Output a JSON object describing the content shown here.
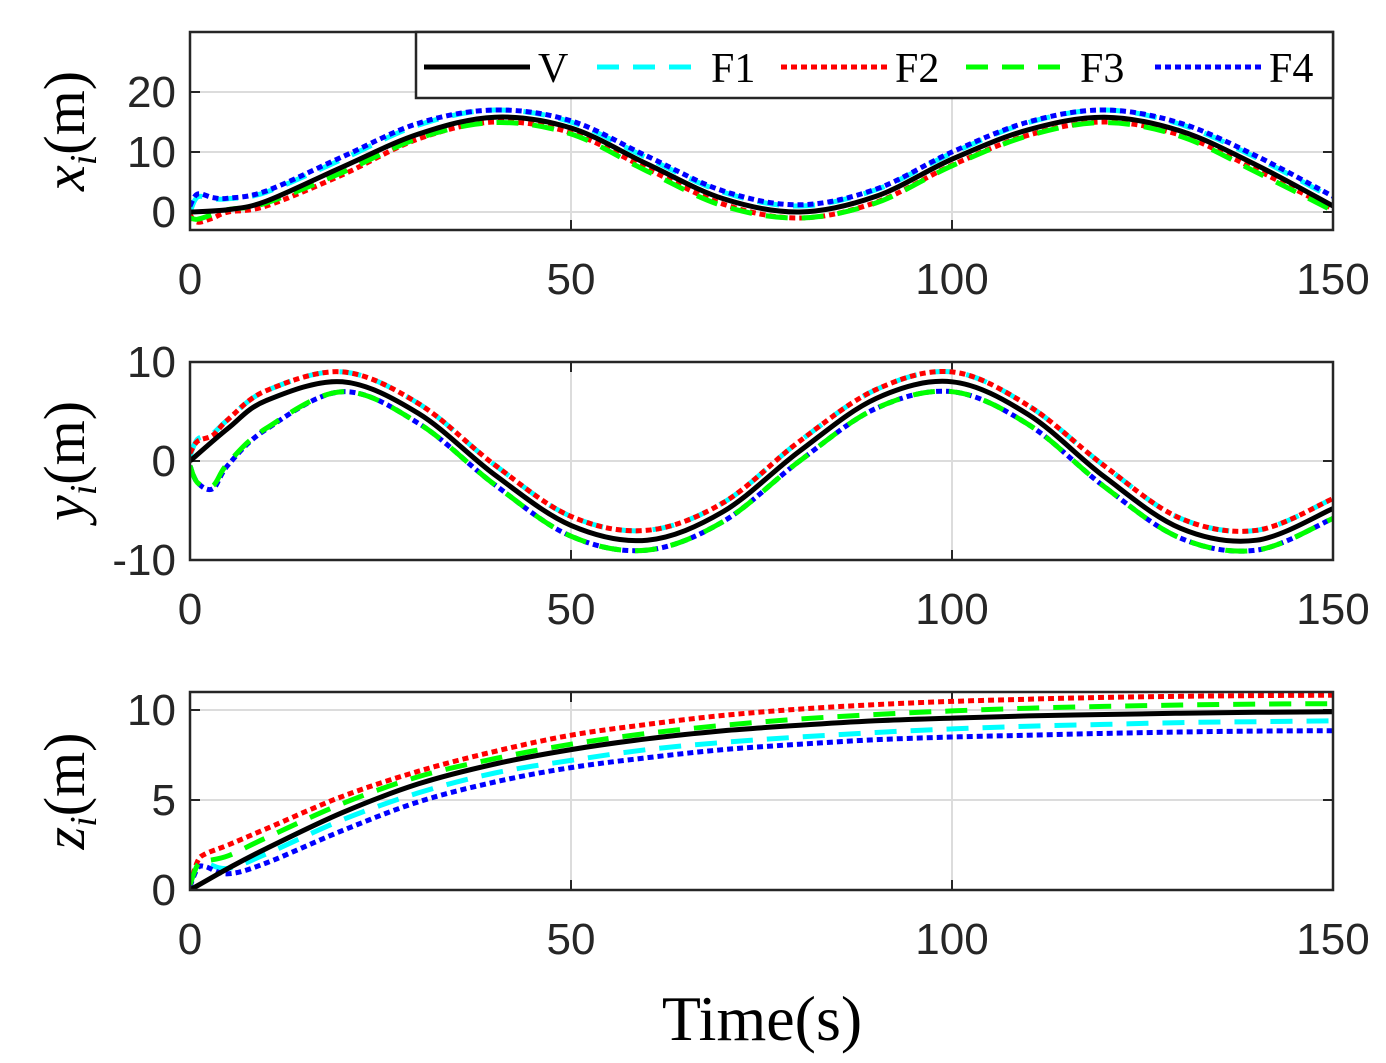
{
  "chart_data": {
    "type": "line",
    "xlabel": "Time(s)",
    "xlim": [
      0,
      150
    ],
    "xticks": [
      "0",
      "50",
      "100",
      "150"
    ],
    "legend": {
      "position": "top-right",
      "entries": [
        {
          "name": "V",
          "color": "#000000",
          "dash": "solid"
        },
        {
          "name": "F1",
          "color": "#00ffff",
          "dash": "dashed"
        },
        {
          "name": "F2",
          "color": "#ff0000",
          "dash": "dotted"
        },
        {
          "name": "F3",
          "color": "#00ff00",
          "dash": "dashed"
        },
        {
          "name": "F4",
          "color": "#0000ff",
          "dash": "dotted"
        }
      ]
    },
    "subplots": [
      {
        "id": "x",
        "ylabel_var": "x",
        "ylabel_sub": "i",
        "ylabel_unit": "(m)",
        "ylim": [
          -3,
          30
        ],
        "yticks": [
          {
            "v": 0,
            "label": "0"
          },
          {
            "v": 10,
            "label": "10"
          },
          {
            "v": 20,
            "label": "20"
          }
        ],
        "series": [
          {
            "name": "V",
            "t": [
              0,
              5,
              10,
              20,
              30,
              40,
              50,
              60,
              70,
              80,
              90,
              100,
              110,
              120,
              130,
              140,
              150
            ],
            "values": [
              0,
              0.4,
              1.8,
              7.5,
              13,
              15.8,
              14,
              8,
              2.2,
              0,
              2.6,
              8.8,
              13.7,
              15.8,
              13.5,
              7.8,
              1
            ]
          },
          {
            "name": "F1",
            "t": [
              0,
              1,
              3,
              5,
              10,
              20,
              30,
              40,
              50,
              60,
              70,
              80,
              90,
              100,
              110,
              120,
              130,
              140,
              150
            ],
            "values": [
              0,
              2.5,
              2.2,
              2.2,
              3.3,
              8.8,
              14.5,
              17,
              15,
              9,
              3.3,
              1,
              3.7,
              9.8,
              14.9,
              17,
              14.6,
              9,
              2.3
            ]
          },
          {
            "name": "F2",
            "t": [
              0,
              1,
              3,
              5,
              10,
              20,
              30,
              40,
              50,
              60,
              70,
              80,
              90,
              100,
              110,
              120,
              130,
              140,
              150
            ],
            "values": [
              -0.5,
              -1.7,
              -1,
              0,
              1,
              6.2,
              12.2,
              15,
              13.2,
              7.2,
              1.3,
              -1,
              1.6,
              7.8,
              12.8,
              15,
              12.8,
              7,
              0.5
            ]
          },
          {
            "name": "F3",
            "t": [
              0,
              1,
              3,
              5,
              10,
              20,
              30,
              40,
              50,
              60,
              70,
              80,
              90,
              100,
              110,
              120,
              130,
              140,
              150
            ],
            "values": [
              -1,
              -1.2,
              -0.4,
              0.4,
              1.5,
              6.6,
              12.3,
              14.9,
              13,
              6.8,
              1,
              -1,
              1.5,
              7.7,
              12.7,
              14.9,
              12.6,
              6.6,
              0.2
            ]
          },
          {
            "name": "F4",
            "t": [
              0,
              1,
              3,
              5,
              10,
              20,
              30,
              40,
              50,
              60,
              70,
              80,
              90,
              100,
              110,
              120,
              130,
              140,
              150
            ],
            "values": [
              1,
              3,
              2.4,
              2.3,
              3.5,
              9.2,
              14.8,
              17,
              15.2,
              9.3,
              3.5,
              1.2,
              3.8,
              10,
              15,
              17,
              14.8,
              9.3,
              2.6
            ]
          }
        ]
      },
      {
        "id": "y",
        "ylabel_var": "y",
        "ylabel_sub": "i",
        "ylabel_unit": "(m)",
        "ylim": [
          -10,
          10
        ],
        "yticks": [
          {
            "v": -10,
            "label": "-10"
          },
          {
            "v": 0,
            "label": "0"
          },
          {
            "v": 10,
            "label": "10"
          }
        ],
        "series": [
          {
            "name": "V",
            "t": [
              0,
              5,
              10,
              20,
              30,
              40,
              50,
              60,
              70,
              80,
              90,
              100,
              110,
              120,
              130,
              140,
              150
            ],
            "values": [
              0,
              3.3,
              6.1,
              8,
              4.8,
              -1.4,
              -6.5,
              -8,
              -5.1,
              1,
              6.3,
              8,
              4.7,
              -1.6,
              -6.8,
              -8,
              -4.8
            ]
          },
          {
            "name": "F1",
            "t": [
              0,
              1,
              3,
              5,
              10,
              20,
              30,
              40,
              50,
              60,
              70,
              80,
              90,
              100,
              110,
              120,
              130,
              140,
              150
            ],
            "values": [
              0.5,
              2.2,
              2.8,
              4.2,
              7.1,
              9,
              5.8,
              -0.4,
              -5.6,
              -7,
              -4.2,
              2,
              7.2,
              9,
              5.6,
              -0.5,
              -5.8,
              -7,
              -3.8
            ]
          },
          {
            "name": "F2",
            "t": [
              0,
              1,
              3,
              5,
              10,
              20,
              30,
              40,
              50,
              60,
              70,
              80,
              90,
              100,
              110,
              120,
              130,
              140,
              150
            ],
            "values": [
              0.8,
              2,
              2.6,
              4.2,
              7.1,
              9,
              5.8,
              -0.4,
              -5.6,
              -7,
              -4.2,
              2,
              7.2,
              9,
              5.6,
              -0.5,
              -5.8,
              -7,
              -3.8
            ]
          },
          {
            "name": "F3",
            "t": [
              0,
              1,
              3,
              5,
              10,
              20,
              30,
              40,
              50,
              60,
              70,
              80,
              90,
              100,
              110,
              120,
              130,
              140,
              150
            ],
            "values": [
              -0.5,
              -2.2,
              -2.5,
              -0.2,
              3.3,
              7,
              3.8,
              -2.4,
              -7.6,
              -9,
              -6.1,
              0,
              5.3,
              7,
              3.7,
              -2.6,
              -7.8,
              -9,
              -5.8
            ]
          },
          {
            "name": "F4",
            "t": [
              0,
              1,
              3,
              5,
              10,
              20,
              30,
              40,
              50,
              60,
              70,
              80,
              90,
              100,
              110,
              120,
              130,
              140,
              150
            ],
            "values": [
              -0.5,
              -2.2,
              -2.8,
              -0.4,
              3.2,
              7,
              3.8,
              -2.4,
              -7.6,
              -9,
              -6.1,
              0,
              5.3,
              7,
              3.7,
              -2.6,
              -7.8,
              -9,
              -5.8
            ]
          }
        ]
      },
      {
        "id": "z",
        "ylabel_var": "z",
        "ylabel_sub": "i",
        "ylabel_unit": "(m)",
        "ylim": [
          0,
          11
        ],
        "yticks": [
          {
            "v": 0,
            "label": "0"
          },
          {
            "v": 5,
            "label": "5"
          },
          {
            "v": 10,
            "label": "10"
          }
        ],
        "series": [
          {
            "name": "V",
            "t": [
              0,
              5,
              10,
              20,
              30,
              40,
              50,
              60,
              70,
              80,
              90,
              100,
              110,
              120,
              130,
              140,
              150
            ],
            "values": [
              0,
              1.2,
              2.3,
              4.3,
              5.9,
              7,
              7.8,
              8.4,
              8.85,
              9.15,
              9.4,
              9.55,
              9.67,
              9.75,
              9.82,
              9.87,
              9.9
            ]
          },
          {
            "name": "F1",
            "t": [
              0,
              1,
              2,
              5,
              10,
              20,
              30,
              40,
              50,
              60,
              70,
              80,
              90,
              100,
              110,
              120,
              130,
              140,
              150
            ],
            "values": [
              0.3,
              1.4,
              1.5,
              1.2,
              2,
              3.9,
              5.4,
              6.5,
              7.2,
              7.8,
              8.2,
              8.5,
              8.75,
              8.95,
              9.1,
              9.2,
              9.3,
              9.35,
              9.4
            ]
          },
          {
            "name": "F2",
            "t": [
              0,
              1,
              2,
              5,
              10,
              20,
              30,
              40,
              50,
              60,
              70,
              80,
              90,
              100,
              110,
              120,
              130,
              140,
              150
            ],
            "values": [
              0.3,
              1.6,
              2,
              2.5,
              3.4,
              5.2,
              6.6,
              7.7,
              8.6,
              9.2,
              9.7,
              10.05,
              10.3,
              10.48,
              10.6,
              10.7,
              10.76,
              10.8,
              10.82
            ]
          },
          {
            "name": "F3",
            "t": [
              0,
              1,
              2,
              5,
              10,
              20,
              30,
              40,
              50,
              60,
              70,
              80,
              90,
              100,
              110,
              120,
              130,
              140,
              150
            ],
            "values": [
              0.3,
              1.4,
              1.6,
              1.9,
              2.9,
              4.8,
              6.3,
              7.3,
              8.1,
              8.7,
              9.15,
              9.5,
              9.75,
              9.95,
              10.1,
              10.2,
              10.28,
              10.33,
              10.35
            ]
          },
          {
            "name": "F4",
            "t": [
              0,
              1,
              2,
              5,
              10,
              20,
              30,
              40,
              50,
              60,
              70,
              80,
              90,
              100,
              110,
              120,
              130,
              140,
              150
            ],
            "values": [
              0.2,
              1.2,
              1.3,
              0.9,
              1.5,
              3.3,
              4.9,
              6,
              6.8,
              7.35,
              7.8,
              8.1,
              8.35,
              8.5,
              8.6,
              8.7,
              8.78,
              8.83,
              8.85
            ]
          }
        ]
      }
    ]
  }
}
